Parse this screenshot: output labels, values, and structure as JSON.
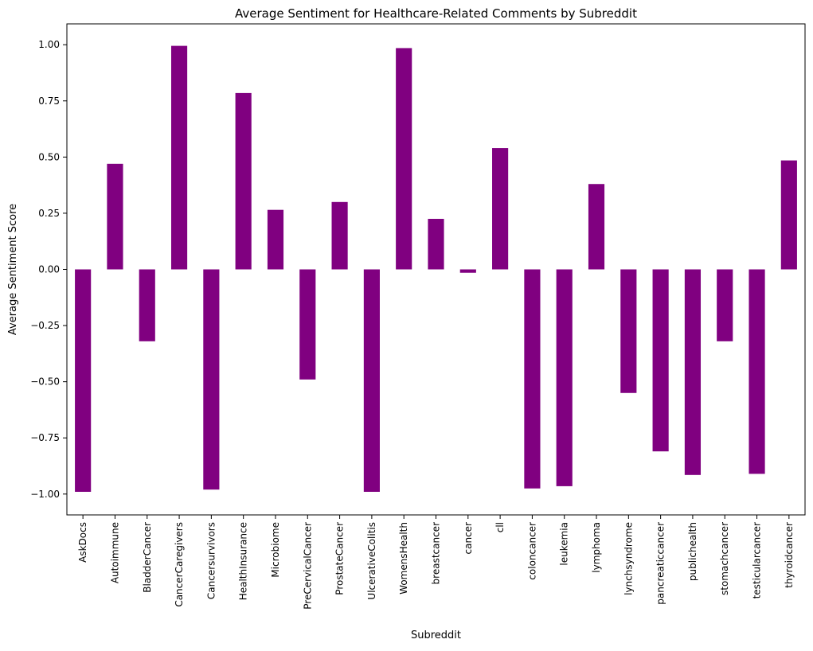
{
  "chart_data": {
    "type": "bar",
    "title": "Average Sentiment for Healthcare-Related Comments by Subreddit",
    "xlabel": "Subreddit",
    "ylabel": "Average Sentiment Score",
    "categories": [
      "AskDocs",
      "Autoimmune",
      "BladderCancer",
      "CancerCaregivers",
      "Cancersurvivors",
      "HealthInsurance",
      "Microbiome",
      "PreCervicalCancer",
      "ProstateCancer",
      "UlcerativeColitis",
      "WomensHealth",
      "breastcancer",
      "cancer",
      "cll",
      "coloncancer",
      "leukemia",
      "lymphoma",
      "lynchsyndrome",
      "pancreaticcancer",
      "publichealth",
      "stomachcancer",
      "testicularcancer",
      "thyroidcancer"
    ],
    "values": [
      -0.99,
      0.47,
      -0.32,
      0.995,
      -0.98,
      0.785,
      0.265,
      -0.49,
      0.3,
      -0.99,
      0.985,
      0.225,
      -0.015,
      0.54,
      -0.975,
      -0.965,
      0.38,
      -0.55,
      -0.81,
      -0.915,
      -0.32,
      -0.91,
      0.485
    ],
    "yticks": [
      "−1.00",
      "−0.75",
      "−0.50",
      "−0.25",
      "0.00",
      "0.25",
      "0.50",
      "0.75",
      "1.00"
    ],
    "ytick_values": [
      -1.0,
      -0.75,
      -0.5,
      -0.25,
      0.0,
      0.25,
      0.5,
      0.75,
      1.0
    ],
    "ylim": [
      -1.0928,
      1.0928
    ],
    "grid": false,
    "bar_color": "#800080"
  }
}
